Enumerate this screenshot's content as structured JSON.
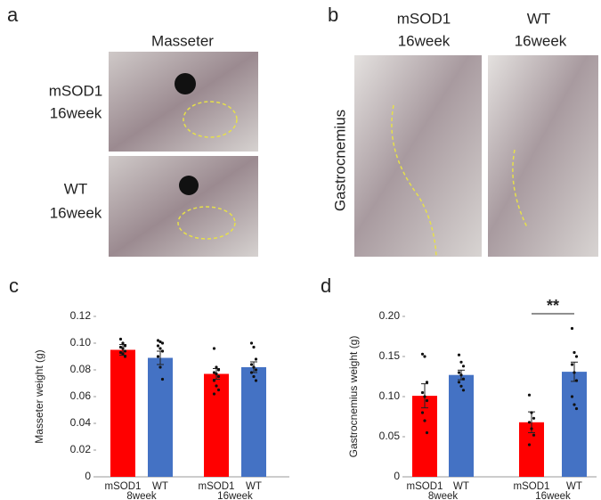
{
  "panel_a": {
    "letter": "a",
    "title": "Masseter",
    "rows": [
      [
        "mSOD1",
        "16week"
      ],
      [
        "WT",
        "16week"
      ]
    ]
  },
  "panel_b": {
    "letter": "b",
    "side_label": "Gastrocnemius",
    "columns": [
      [
        "mSOD1",
        "16week"
      ],
      [
        "WT",
        "16week"
      ]
    ]
  },
  "chart_data": [
    {
      "type": "bar",
      "letter": "c",
      "ylabel": "Masseter weight (g)",
      "categories": [
        "mSOD1",
        "WT",
        "mSOD1",
        "WT"
      ],
      "groups": [
        "8week",
        "16week"
      ],
      "values": [
        0.095,
        0.089,
        0.077,
        0.082
      ],
      "errors": [
        0.004,
        0.005,
        0.004,
        0.004
      ],
      "colors": [
        "#ff0000",
        "#4472c4",
        "#ff0000",
        "#4472c4"
      ],
      "points": [
        [
          0.103,
          0.1,
          0.098,
          0.097,
          0.096,
          0.094,
          0.093,
          0.092,
          0.09
        ],
        [
          0.102,
          0.101,
          0.1,
          0.098,
          0.096,
          0.094,
          0.09,
          0.082,
          0.073
        ],
        [
          0.096,
          0.082,
          0.08,
          0.078,
          0.077,
          0.075,
          0.072,
          0.068,
          0.065,
          0.062
        ],
        [
          0.1,
          0.097,
          0.088,
          0.084,
          0.082,
          0.08,
          0.078,
          0.075,
          0.072
        ]
      ],
      "ylim": [
        0,
        0.12
      ],
      "yticks": [
        0,
        0.02,
        0.04,
        0.06,
        0.08,
        {
          "value": 0.1,
          "label": "0.10"
        },
        0.12
      ]
    },
    {
      "type": "bar",
      "letter": "d",
      "ylabel": "Gastrocnemius weight (g)",
      "categories": [
        "mSOD1",
        "WT",
        "mSOD1",
        "WT"
      ],
      "groups": [
        "8week",
        "16week"
      ],
      "values": [
        0.101,
        0.127,
        0.068,
        0.131
      ],
      "errors": [
        0.015,
        0.006,
        0.013,
        0.012
      ],
      "colors": [
        "#ff0000",
        "#4472c4",
        "#ff0000",
        "#4472c4"
      ],
      "points": [
        [
          0.153,
          0.15,
          0.118,
          0.105,
          0.1,
          0.095,
          0.08,
          0.07,
          0.055
        ],
        [
          0.152,
          0.143,
          0.138,
          0.13,
          0.127,
          0.122,
          0.118,
          0.113,
          0.108
        ],
        [
          0.102,
          0.08,
          0.073,
          0.068,
          0.06,
          0.052,
          0.04
        ],
        [
          0.185,
          0.155,
          0.15,
          0.14,
          0.13,
          0.12,
          0.1,
          0.09,
          0.085
        ]
      ],
      "annotation": "**",
      "ylim": [
        0,
        0.2
      ],
      "yticks": [
        0,
        0.05,
        {
          "value": 0.1,
          "label": "0.10"
        },
        0.15,
        {
          "value": 0.2,
          "label": "0.20"
        }
      ]
    }
  ]
}
